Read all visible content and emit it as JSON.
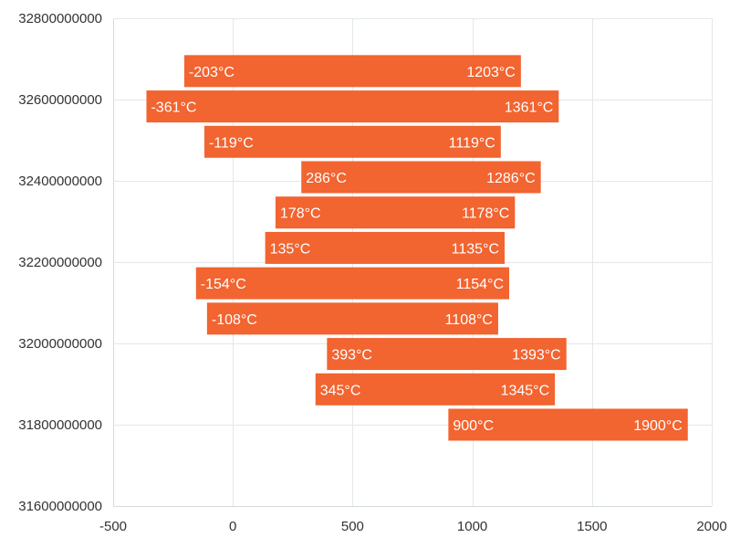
{
  "chart_data": {
    "type": "bar",
    "orientation": "horizontal",
    "bar_style": "floating-range",
    "color": "#f26430",
    "label_color": "#ffffff",
    "grid": true,
    "xlim": [
      -500,
      2000
    ],
    "ylim": [
      31600000000,
      32800000000
    ],
    "x_ticks": [
      -500,
      0,
      500,
      1000,
      1500,
      2000
    ],
    "y_ticks": [
      31600000000,
      31800000000,
      32000000000,
      32200000000,
      32400000000,
      32600000000,
      32800000000
    ],
    "value_suffix": "°C",
    "series": [
      {
        "data": [
          {
            "y": 32670000000,
            "low": -203,
            "high": 1203
          },
          {
            "y": 32583000000,
            "low": -361,
            "high": 1361
          },
          {
            "y": 32496000000,
            "low": -119,
            "high": 1119
          },
          {
            "y": 32409000000,
            "low": 286,
            "high": 1286
          },
          {
            "y": 32322000000,
            "low": 178,
            "high": 1178
          },
          {
            "y": 32235000000,
            "low": 135,
            "high": 1135
          },
          {
            "y": 32148000000,
            "low": -154,
            "high": 1154
          },
          {
            "y": 32061000000,
            "low": -108,
            "high": 1108
          },
          {
            "y": 31974000000,
            "low": 393,
            "high": 1393
          },
          {
            "y": 31887000000,
            "low": 345,
            "high": 1345
          },
          {
            "y": 31800000000,
            "low": 900,
            "high": 1900
          }
        ]
      }
    ]
  }
}
